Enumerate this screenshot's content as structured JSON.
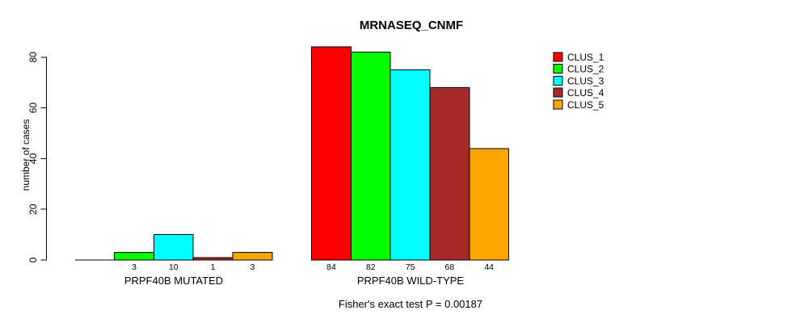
{
  "title": "MRNASEQ_CNMF",
  "chart_data": {
    "type": "bar",
    "title": "MRNASEQ_CNMF",
    "ylabel": "number of cases",
    "xlabel": "",
    "ylim": [
      0,
      84
    ],
    "yticks": [
      0,
      20,
      40,
      60,
      80
    ],
    "grid": false,
    "legend_position": "right",
    "categories": [
      "PRPF40B MUTATED",
      "PRPF40B WILD-TYPE"
    ],
    "series": [
      {
        "name": "CLUS_1",
        "color": "#FF0000",
        "values": [
          0,
          84
        ]
      },
      {
        "name": "CLUS_2",
        "color": "#00FF00",
        "values": [
          3,
          82
        ]
      },
      {
        "name": "CLUS_3",
        "color": "#00FFFF",
        "values": [
          10,
          75
        ]
      },
      {
        "name": "CLUS_4",
        "color": "#A52A2A",
        "values": [
          1,
          68
        ]
      },
      {
        "name": "CLUS_5",
        "color": "#FFA500",
        "values": [
          3,
          44
        ]
      }
    ],
    "annotation": "Fisher's exact test P = 0.00187"
  }
}
